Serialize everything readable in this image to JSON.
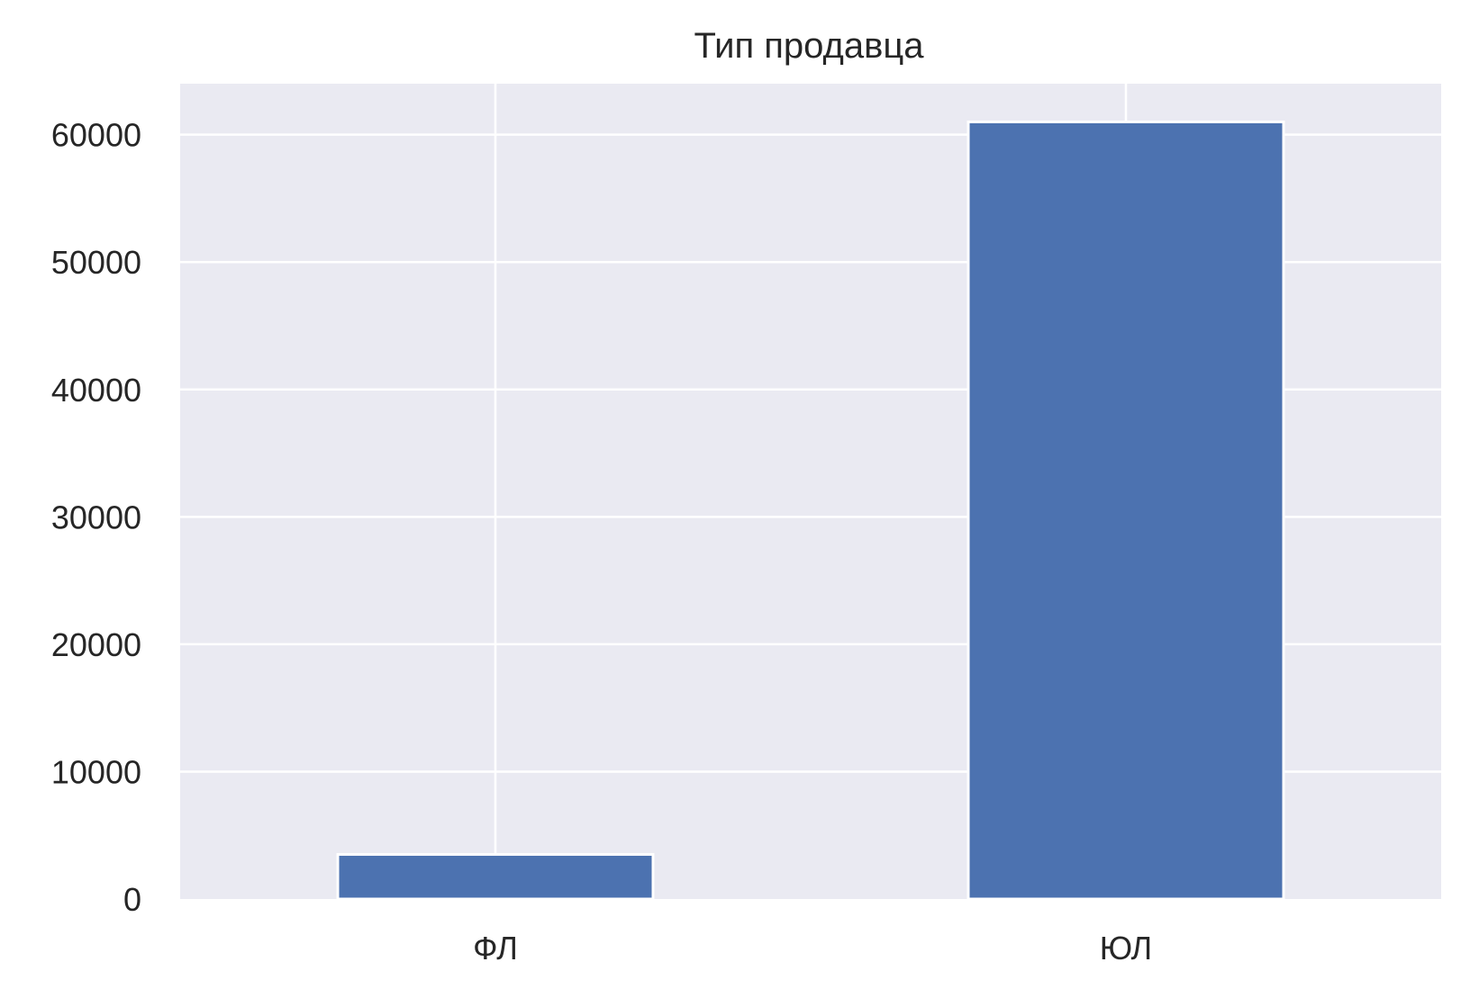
{
  "chart_data": {
    "type": "bar",
    "title": "Тип продавца",
    "xlabel": "",
    "ylabel": "",
    "categories": [
      "ФЛ",
      "ЮЛ"
    ],
    "values": [
      3500,
      61000
    ],
    "ylim": [
      0,
      64000
    ],
    "yticks": [
      0,
      10000,
      20000,
      30000,
      40000,
      50000,
      60000
    ],
    "ytick_labels": [
      "0",
      "10000",
      "20000",
      "30000",
      "40000",
      "50000",
      "60000"
    ],
    "grid": true,
    "legend": "none"
  },
  "colors": {
    "bar": "#4c72b0",
    "plot_background": "#eaeaf2",
    "grid": "#ffffff",
    "text": "#262626"
  }
}
